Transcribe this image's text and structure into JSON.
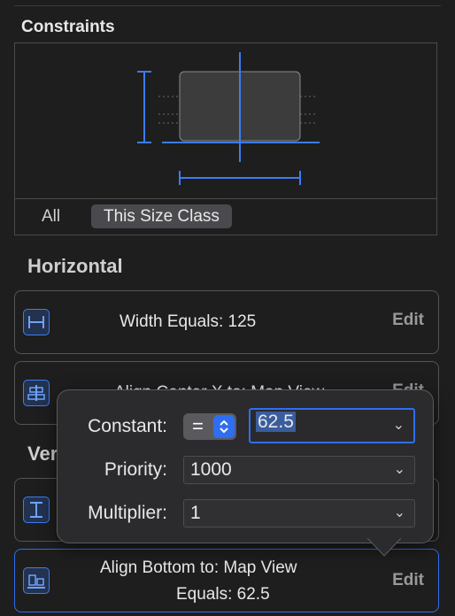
{
  "constraints_panel": {
    "title": "Constraints",
    "segments": [
      "All",
      "This Size Class"
    ]
  },
  "horizontal": {
    "title": "Horizontal",
    "rows": [
      {
        "text": "Width Equals:  125",
        "edit": "Edit"
      },
      {
        "text": "Align Center X to:  Map View",
        "edit": "Edit"
      }
    ]
  },
  "vertical": {
    "title": "Vertical",
    "rows": [
      {
        "text": "",
        "edit": ""
      },
      {
        "line1": "Align Bottom to:  Map View",
        "line2": "Equals:  62.5",
        "edit": "Edit"
      }
    ]
  },
  "popover": {
    "constant_label": "Constant:",
    "relation": "=",
    "constant_value": "62.5",
    "priority_label": "Priority:",
    "priority_value": "1000",
    "multiplier_label": "Multiplier:",
    "multiplier_value": "1"
  },
  "colors": {
    "accent": "#2f6ef0",
    "guide": "#3c7cf6",
    "background": "#1e1e1e"
  }
}
